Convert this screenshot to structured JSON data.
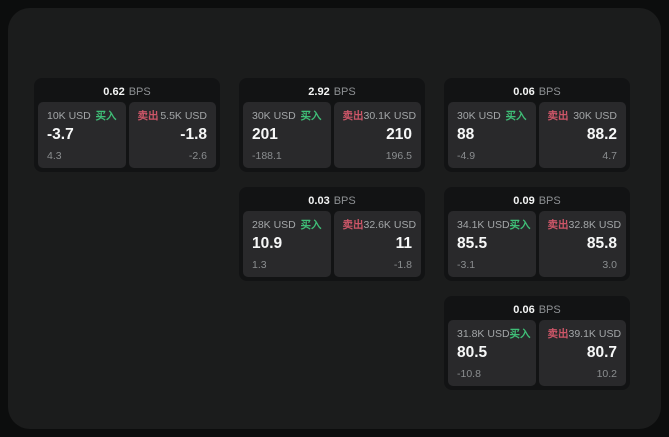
{
  "labels": {
    "bps": "BPS",
    "buy": "买入",
    "sell": "卖出"
  },
  "colors": {
    "outer_background": "#0c0d0d",
    "panel_background": "#1b1c1c",
    "card_background": "#121314",
    "subpanel_background": "#29292b",
    "buy_green": "#3fbe77",
    "sell_red": "#cd5668",
    "value_white": "#f7f8f8",
    "muted_gray": "#8e9194"
  },
  "cards": [
    {
      "bps": "0.62",
      "grid": {
        "row": 1,
        "col": 1
      },
      "buy": {
        "amount": "10K USD",
        "value": "-3.7",
        "sub": "4.3"
      },
      "sell": {
        "amount": "5.5K USD",
        "value": "-1.8",
        "sub": "-2.6"
      }
    },
    {
      "bps": "2.92",
      "grid": {
        "row": 1,
        "col": 2
      },
      "buy": {
        "amount": "30K USD",
        "value": "201",
        "sub": "-188.1"
      },
      "sell": {
        "amount": "30.1K USD",
        "value": "210",
        "sub": "196.5"
      }
    },
    {
      "bps": "0.06",
      "grid": {
        "row": 1,
        "col": 3
      },
      "buy": {
        "amount": "30K USD",
        "value": "88",
        "sub": "-4.9"
      },
      "sell": {
        "amount": "30K USD",
        "value": "88.2",
        "sub": "4.7"
      }
    },
    {
      "bps": "0.03",
      "grid": {
        "row": 2,
        "col": 2
      },
      "buy": {
        "amount": "28K USD",
        "value": "10.9",
        "sub": "1.3"
      },
      "sell": {
        "amount": "32.6K USD",
        "value": "11",
        "sub": "-1.8"
      }
    },
    {
      "bps": "0.09",
      "grid": {
        "row": 2,
        "col": 3
      },
      "buy": {
        "amount": "34.1K USD",
        "value": "85.5",
        "sub": "-3.1"
      },
      "sell": {
        "amount": "32.8K USD",
        "value": "85.8",
        "sub": "3.0"
      }
    },
    {
      "bps": "0.06",
      "grid": {
        "row": 3,
        "col": 3
      },
      "buy": {
        "amount": "31.8K USD",
        "value": "80.5",
        "sub": "-10.8"
      },
      "sell": {
        "amount": "39.1K USD",
        "value": "80.7",
        "sub": "10.2"
      }
    }
  ]
}
